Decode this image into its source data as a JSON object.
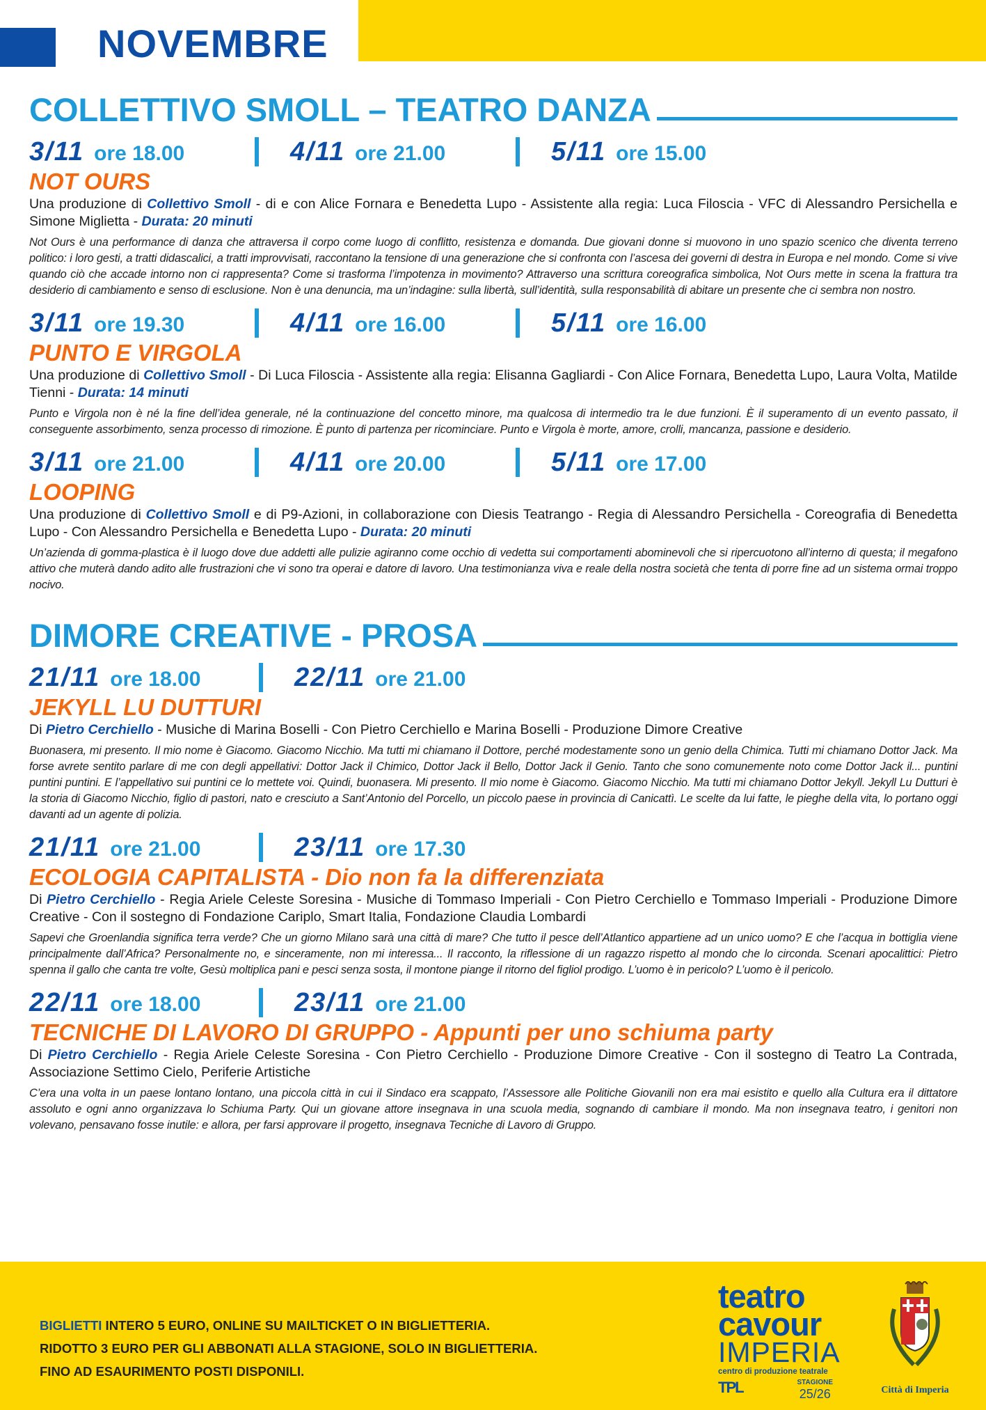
{
  "header": {
    "month": "NOVEMBRE"
  },
  "colors": {
    "dark_blue": "#0e4da4",
    "light_blue": "#1f9ad9",
    "orange": "#f26a12",
    "yellow": "#fdd600"
  },
  "sections": [
    {
      "title": "COLLETTIVO SMOLL – TEATRO DANZA",
      "events": [
        {
          "dates": [
            {
              "d": "3/11",
              "o": "ore 18.00"
            },
            {
              "d": "4/11",
              "o": "ore 21.00"
            },
            {
              "d": "5/11",
              "o": "ore 15.00"
            }
          ],
          "title": "NOT OURS",
          "subtitle": "",
          "credits": [
            "Una produzione di ",
            "Collettivo Smoll",
            " - di e con Alice Fornara e Benedetta Lupo - Assistente alla regia: Luca Filoscia - VFC di Alessandro Persichella e Simone Miglietta - ",
            "Durata: 20 minuti"
          ],
          "desc": "Not Ours è una performance di danza che attraversa il corpo come luogo di conflitto, resistenza e domanda. Due giovani donne si muovono in uno spazio scenico che diventa terreno politico: i loro gesti, a tratti didascalici, a tratti improvvisati, raccontano la tensione di una generazione che si confronta con l’ascesa dei governi di destra in Europa e nel mondo. Come si vive quando ciò che accade intorno non ci rappresenta? Come si trasforma l’impotenza in movimento? Attraverso una scrittura coreografica simbolica, Not Ours mette in scena la frattura tra desiderio di cambiamento e senso di esclusione. Non è una denuncia, ma un’indagine: sulla libertà, sull’identità, sulla responsabilità di abitare un presente che ci sembra non nostro."
        },
        {
          "dates": [
            {
              "d": "3/11",
              "o": "ore 19.30"
            },
            {
              "d": "4/11",
              "o": "ore 16.00"
            },
            {
              "d": "5/11",
              "o": "ore 16.00"
            }
          ],
          "title": "PUNTO E VIRGOLA",
          "subtitle": "",
          "credits": [
            "Una produzione di ",
            "Collettivo Smoll",
            " - Di Luca Filoscia - Assistente alla regia: Elisanna Gagliardi - Con Alice Fornara, Benedetta Lupo, Laura Volta, Matilde Tienni - ",
            "Durata: 14 minuti"
          ],
          "desc": "Punto e Virgola non è né la fine dell’idea generale, né la continuazione del concetto minore, ma qualcosa di intermedio tra le due funzioni. È il superamento di un evento passato, il conseguente assorbimento, senza processo di rimozione. È punto di partenza per ricominciare. Punto e Virgola è morte, amore, crolli, mancanza, passione e desiderio."
        },
        {
          "dates": [
            {
              "d": "3/11",
              "o": "ore 21.00"
            },
            {
              "d": "4/11",
              "o": "ore 20.00"
            },
            {
              "d": "5/11",
              "o": "ore 17.00"
            }
          ],
          "title": "LOOPING",
          "subtitle": "",
          "credits": [
            "Una produzione di ",
            "Collettivo Smoll",
            " e di P9-Azioni, in collaborazione con Diesis Teatrango - Regia di Alessandro Persichella - Coreografia di Benedetta Lupo - Con Alessandro Persichella e Benedetta Lupo - ",
            "Durata: 20 minuti"
          ],
          "desc": "Un’azienda di gomma-plastica è il luogo dove due addetti alle pulizie agiranno come occhio di vedetta sui comportamenti abominevoli che si ripercuotono all’interno di questa; il megafono attivo che muterà dando adito alle frustrazioni che vi sono tra operai e datore di lavoro. Una testimonianza viva e reale della nostra società che tenta di porre fine ad un sistema ormai troppo nocivo."
        }
      ]
    },
    {
      "title": "DIMORE CREATIVE - PROSA",
      "events": [
        {
          "dates": [
            {
              "d": "21/11",
              "o": "ore 18.00"
            },
            {
              "d": "22/11",
              "o": "ore 21.00"
            }
          ],
          "title": "JEKYLL LU DUTTURI",
          "subtitle": "",
          "credits": [
            "Di ",
            "Pietro Cerchiello",
            " - Musiche di Marina Boselli - Con Pietro Cerchiello e Marina Boselli - Produzione Dimore Creative",
            ""
          ],
          "desc": "Buonasera, mi presento. Il mio nome è Giacomo. Giacomo Nicchio. Ma tutti mi chiamano il Dottore, perché modestamente sono un genio della Chimica. Tutti mi chiamano Dottor Jack. Ma forse avrete sentito parlare di me con degli appellativi: Dottor Jack il Chimico, Dottor Jack il Bello, Dottor Jack il Genio. Tanto che sono comunemente noto come Dottor Jack il... puntini puntini puntini. E l’appellativo sui puntini ce lo mettete voi. Quindi, buonasera. Mi presento. Il mio nome è Giacomo. Giacomo Nicchio. Ma tutti mi chiamano Dottor Jekyll. Jekyll Lu Dutturi è la storia di Giacomo Nicchio, figlio di pastori, nato e cresciuto a Sant’Antonio del Porcello, un piccolo paese in provincia di Canicattì. Le scelte da lui fatte, le pieghe della vita, lo portano oggi davanti ad un agente di polizia."
        },
        {
          "dates": [
            {
              "d": "21/11",
              "o": "ore 21.00"
            },
            {
              "d": "23/11",
              "o": "ore 17.30"
            }
          ],
          "title": "ECOLOGIA CAPITALISTA",
          "subtitle": " - Dio non fa la differenziata",
          "credits": [
            "Di ",
            "Pietro Cerchiello",
            " - Regia Ariele Celeste Soresina - Musiche di Tommaso Imperiali - Con Pietro Cerchiello e Tommaso Imperiali - Produzione Dimore Creative - Con il sostegno di Fondazione Cariplo, Smart Italia, Fondazione Claudia Lombardi",
            ""
          ],
          "desc": "Sapevi che Groenlandia significa terra verde? Che un giorno Milano sarà una città di mare? Che tutto il pesce dell’Atlantico appartiene ad un unico uomo? E che l’acqua in bottiglia viene principalmente dall’Africa? Personalmente no, e sinceramente, non mi interessa... Il racconto, la riflessione di un ragazzo rispetto al mondo che lo circonda. Scenari apocalittici: Pietro spenna il gallo che canta tre volte, Gesù moltiplica pani e pesci senza sosta, il montone piange il ritorno del figliol prodigo. L’uomo è in pericolo? L’uomo è il pericolo."
        },
        {
          "dates": [
            {
              "d": "22/11",
              "o": "ore 18.00"
            },
            {
              "d": "23/11",
              "o": "ore 21.00"
            }
          ],
          "title": "TECNICHE DI LAVORO DI GRUPPO",
          "subtitle": " - Appunti per uno schiuma party",
          "credits": [
            "Di ",
            "Pietro Cerchiello",
            " - Regia Ariele Celeste Soresina - Con Pietro Cerchiello - Produzione Dimore Creative - Con il sostegno di Teatro La Contrada, Associazione Settimo Cielo, Periferie Artistiche",
            ""
          ],
          "desc": "C’era una volta in un paese lontano lontano, una piccola città in cui il Sindaco era scappato, l’Assessore alle Politiche Giovanili non era mai esistito e quello alla Cultura era il dittatore assoluto e ogni anno organizzava lo Schiuma Party. Qui un giovane attore insegnava in una scuola media, sognando di cambiare il mondo. Ma non insegnava teatro, i genitori non volevano, pensavano fosse inutile: e allora, per farsi approvare il progetto, insegnava Tecniche di Lavoro di Gruppo."
        }
      ]
    }
  ],
  "footer": {
    "line1_label": "BIGLIETTI",
    "line1": " INTERO 5 EURO, ONLINE SU MAILTICKET O IN BIGLIETTERIA.",
    "line2": "RIDOTTO 3 EURO PER GLI ABBONATI ALLA STAGIONE, SOLO IN BIGLIETTERIA.",
    "line3": "FINO AD ESAURIMENTO POSTI DISPONILI.",
    "logo": {
      "l1": "teatro",
      "l2": "cavour",
      "l3": "IMPERIA",
      "l4": "centro di produzione teatrale",
      "tpl": "TPL",
      "stagione": "STAGIONE",
      "season": "25/26"
    },
    "city": "Città di Imperia"
  }
}
